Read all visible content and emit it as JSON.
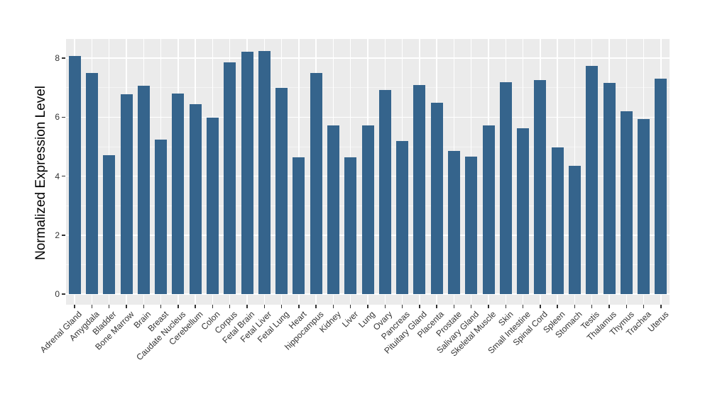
{
  "figure": {
    "background": "#FFFFFF"
  },
  "chart_data": {
    "type": "bar",
    "title": "",
    "xlabel": "",
    "ylabel": "Normalized Expression Level",
    "legend": "none",
    "grid": "major and minor white gridlines on gray panel",
    "ylim": [
      0,
      8.65
    ],
    "yticks": [
      0,
      2,
      4,
      6,
      8
    ],
    "categories": [
      "Adrenal Gland",
      "Amygdala",
      "Bladder",
      "Bone Marrow",
      "Brain",
      "Breast",
      "Caudate Nucleus",
      "Cerebellum",
      "Colon",
      "Corpus",
      "Fetal Brain",
      "Fetal Liver",
      "Fetal Lung",
      "Heart",
      "hippocampus",
      "Kidney",
      "Liver",
      "Lung",
      "Ovary",
      "Pancreas",
      "Pituitary Gland",
      "Placenta",
      "Prostate",
      "Salivary Gland",
      "Skeletal Muscle",
      "Skin",
      "Small Intestine",
      "Spinal Cord",
      "Spleen",
      "Stomach",
      "Testis",
      "Thalamus",
      "Thymus",
      "Trachea",
      "Uterus"
    ],
    "values": [
      8.08,
      7.51,
      4.72,
      6.78,
      7.06,
      5.24,
      6.8,
      6.44,
      5.98,
      7.86,
      8.21,
      8.24,
      6.99,
      4.63,
      7.51,
      5.72,
      4.63,
      5.72,
      6.93,
      5.2,
      7.1,
      6.5,
      4.86,
      4.67,
      5.71,
      7.18,
      5.62,
      7.26,
      4.97,
      4.36,
      7.74,
      7.16,
      6.2,
      5.93,
      7.3
    ],
    "colors": {
      "bar": "#35648C",
      "panel_background": "#EBEBEB",
      "gridline_major": "#FFFFFF",
      "gridline_minor": "#F5F5F5",
      "tick_text": "#333333",
      "tick_mark": "#333333",
      "axis_title_text": "#000000"
    }
  }
}
